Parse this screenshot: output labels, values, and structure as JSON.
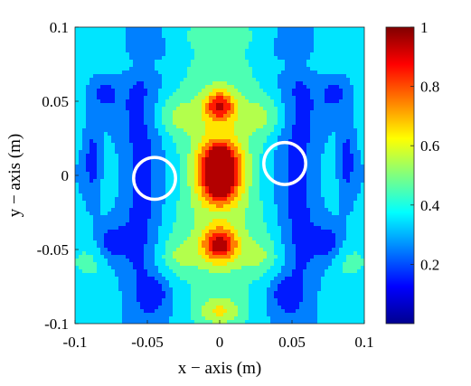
{
  "chart_data": {
    "type": "heatmap",
    "title": "",
    "xlabel": "x − axis (m)",
    "ylabel": "y − axis (m)",
    "xlim": [
      -0.1,
      0.1
    ],
    "ylim": [
      -0.1,
      0.1
    ],
    "x_ticks": [
      -0.1,
      -0.05,
      0,
      0.05,
      0.1
    ],
    "x_tick_labels": [
      "-0.1",
      "-0.05",
      "0",
      "0.05",
      "0.1"
    ],
    "y_ticks": [
      0.1,
      0.05,
      0,
      -0.05,
      -0.1
    ],
    "y_tick_labels": [
      "0.1",
      "0.05",
      "0",
      "-0.05",
      "-0.1"
    ],
    "colorbar": {
      "colormap": "jet",
      "range": [
        0,
        1
      ],
      "ticks": [
        1,
        0.8,
        0.6,
        0.4,
        0.2
      ],
      "tick_labels": [
        "1",
        "0.8",
        "0.6",
        "0.4",
        "0.2"
      ]
    },
    "contour_levels": 10,
    "description_of_field": "normalized intensity map with central vertical high-intensity lobe",
    "peaks": [
      {
        "x": 0.0,
        "y": 0.0,
        "value": 1.0
      },
      {
        "x": 0.0,
        "y": 0.045,
        "value": 0.82
      },
      {
        "x": 0.0,
        "y": -0.047,
        "value": 0.85
      },
      {
        "x": 0.0,
        "y": -0.092,
        "value": 0.5
      }
    ],
    "markers": [
      {
        "shape": "circle",
        "x": -0.045,
        "y": -0.002,
        "radius": 0.0145,
        "color": "#ffffff"
      },
      {
        "shape": "circle",
        "x": 0.045,
        "y": 0.008,
        "radius": 0.0145,
        "color": "#ffffff"
      }
    ]
  }
}
